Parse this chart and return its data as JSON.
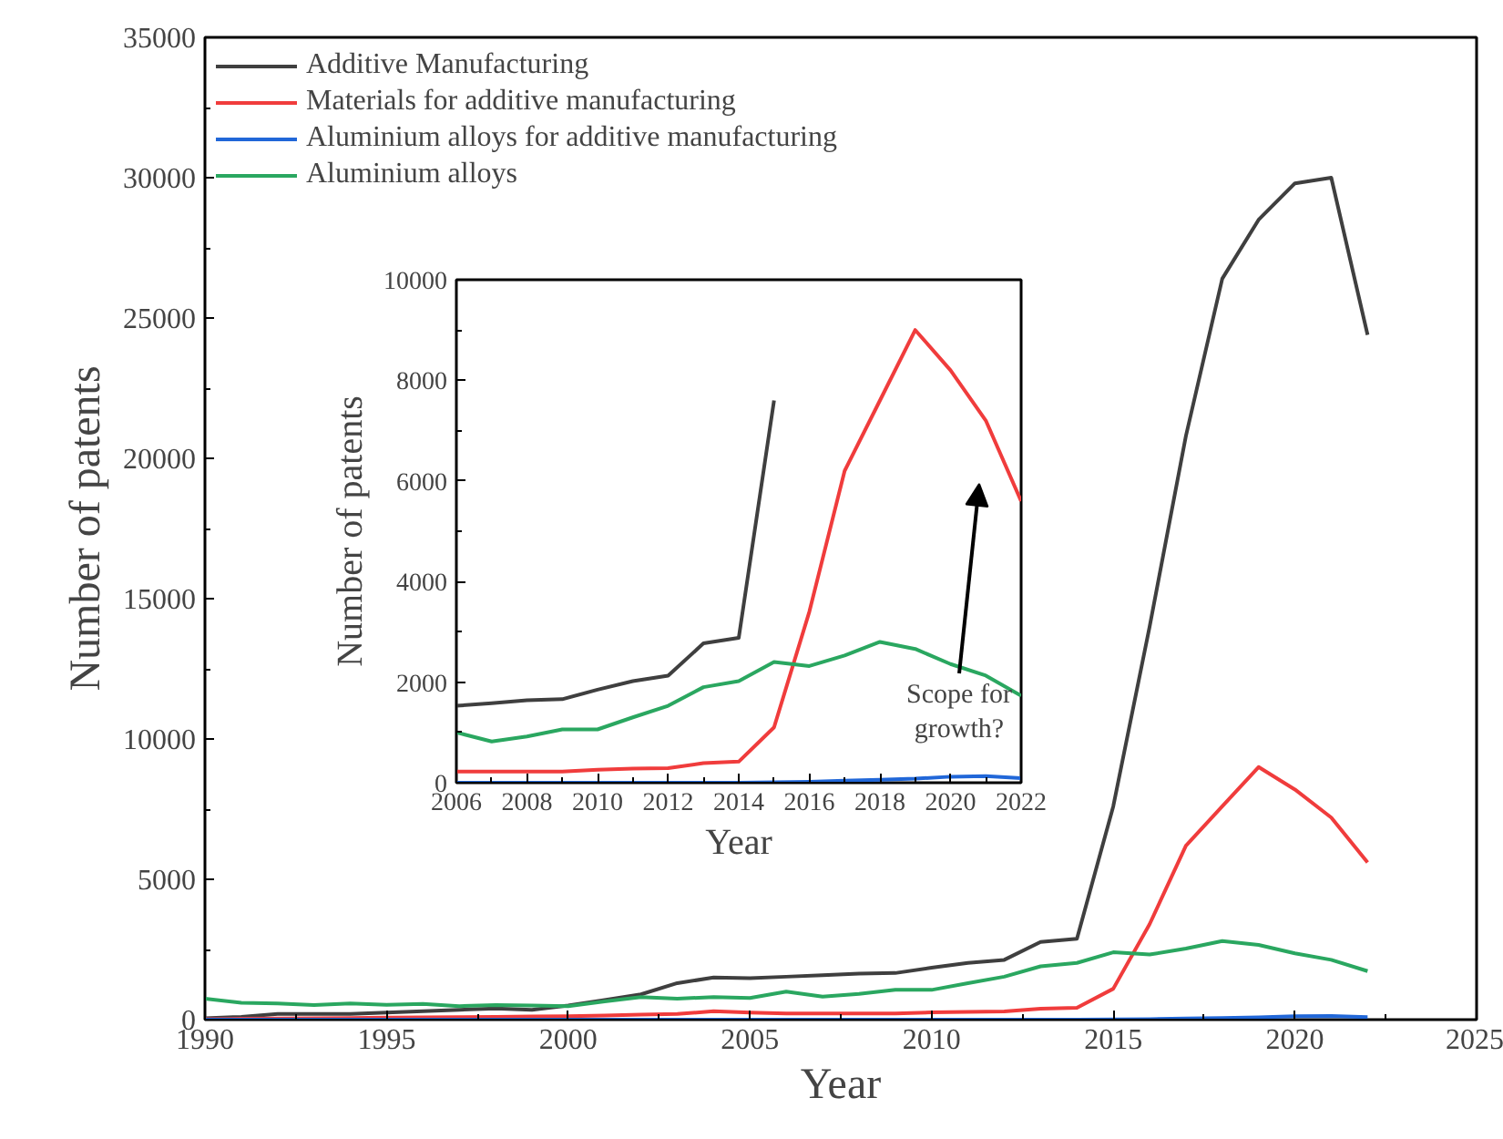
{
  "chart_data": [
    {
      "type": "line",
      "xlabel": "Year",
      "ylabel": "Number of patents",
      "xlim": [
        1990,
        2025
      ],
      "ylim": [
        0,
        35000
      ],
      "xticks": [
        1990,
        1995,
        2000,
        2005,
        2010,
        2015,
        2020,
        2025
      ],
      "yticks": [
        0,
        5000,
        10000,
        15000,
        20000,
        25000,
        30000,
        35000
      ],
      "grid": false,
      "legend": "top left",
      "x": [
        1990,
        1991,
        1992,
        1993,
        1994,
        1995,
        1996,
        1997,
        1998,
        1999,
        2000,
        2001,
        2002,
        2003,
        2004,
        2005,
        2006,
        2007,
        2008,
        2009,
        2010,
        2011,
        2012,
        2013,
        2014,
        2015,
        2016,
        2017,
        2018,
        2019,
        2020,
        2021,
        2022
      ],
      "series": [
        {
          "name": "Additive Manufacturing",
          "color": "#3f3f3f",
          "values": [
            50,
            100,
            200,
            200,
            200,
            250,
            300,
            350,
            400,
            350,
            500,
            700,
            900,
            1300,
            1500,
            1480,
            1530,
            1580,
            1640,
            1660,
            1850,
            2020,
            2130,
            2770,
            2880,
            7600,
            14000,
            20800,
            26400,
            28500,
            29800,
            30000,
            24400
          ]
        },
        {
          "name": "Materials for additive manufacturing",
          "color": "#f03c3c",
          "values": [
            20,
            30,
            40,
            50,
            60,
            70,
            80,
            90,
            100,
            110,
            120,
            150,
            180,
            200,
            300,
            250,
            220,
            220,
            220,
            220,
            260,
            280,
            290,
            390,
            420,
            1100,
            3400,
            6200,
            7600,
            9000,
            8200,
            7200,
            5600
          ]
        },
        {
          "name": "Aluminium alloys for additive manufacturing",
          "color": "#2167d8",
          "values": [
            0,
            0,
            0,
            0,
            0,
            0,
            0,
            0,
            0,
            0,
            0,
            0,
            0,
            0,
            0,
            0,
            0,
            0,
            0,
            0,
            0,
            0,
            0,
            0,
            0,
            10,
            20,
            40,
            60,
            80,
            120,
            130,
            90
          ]
        },
        {
          "name": "Aluminium alloys",
          "color": "#2aa760",
          "values": [
            750,
            600,
            580,
            520,
            580,
            530,
            560,
            480,
            520,
            500,
            480,
            650,
            800,
            750,
            800,
            770,
            1000,
            820,
            920,
            1060,
            1060,
            1300,
            1530,
            1900,
            2020,
            2400,
            2320,
            2530,
            2800,
            2660,
            2360,
            2130,
            1730
          ]
        }
      ]
    },
    {
      "type": "line",
      "xlabel": "Year",
      "ylabel": "Number of patents",
      "xlim": [
        2006,
        2022
      ],
      "ylim": [
        0,
        10000
      ],
      "xticks": [
        2006,
        2008,
        2010,
        2012,
        2014,
        2016,
        2018,
        2020,
        2022
      ],
      "yticks": [
        0,
        2000,
        4000,
        6000,
        8000,
        10000
      ],
      "grid": false,
      "legend": false,
      "x": [
        2006,
        2007,
        2008,
        2009,
        2010,
        2011,
        2012,
        2013,
        2014,
        2015,
        2016,
        2017,
        2018,
        2019,
        2020,
        2021,
        2022
      ],
      "annotations": [
        "Scope for\ngrowth?"
      ],
      "series": [
        {
          "color": "#3f3f3f",
          "values": [
            1530,
            1580,
            1640,
            1660,
            1850,
            2020,
            2130,
            2770,
            2880,
            7600,
            null,
            null,
            null,
            null,
            null,
            null,
            null
          ]
        },
        {
          "color": "#f03c3c",
          "values": [
            220,
            220,
            220,
            220,
            260,
            280,
            290,
            390,
            420,
            1100,
            3400,
            6200,
            7600,
            9000,
            8200,
            7200,
            5600
          ]
        },
        {
          "color": "#2167d8",
          "values": [
            0,
            0,
            0,
            0,
            0,
            0,
            0,
            0,
            0,
            10,
            20,
            40,
            60,
            80,
            120,
            130,
            90
          ]
        },
        {
          "color": "#2aa760",
          "values": [
            1000,
            820,
            920,
            1060,
            1060,
            1300,
            1530,
            1900,
            2020,
            2400,
            2320,
            2530,
            2800,
            2660,
            2360,
            2130,
            1730
          ]
        }
      ]
    }
  ]
}
